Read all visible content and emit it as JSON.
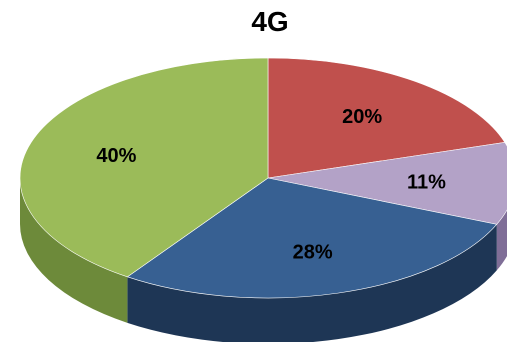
{
  "chart_data": {
    "type": "pie",
    "title": "4G",
    "style": "3d",
    "slices": [
      {
        "label": "20%",
        "value": 20,
        "color": "#C0504D",
        "side_color": "#8C3836"
      },
      {
        "label": "11%",
        "value": 11,
        "color": "#B3A2C7",
        "side_color": "#7F6E97"
      },
      {
        "label": "28%",
        "value": 28,
        "color": "#376092",
        "side_color": "#1E3655"
      },
      {
        "label": "40%",
        "value": 40,
        "color": "#9BBB59",
        "side_color": "#6D8A3A"
      }
    ]
  }
}
